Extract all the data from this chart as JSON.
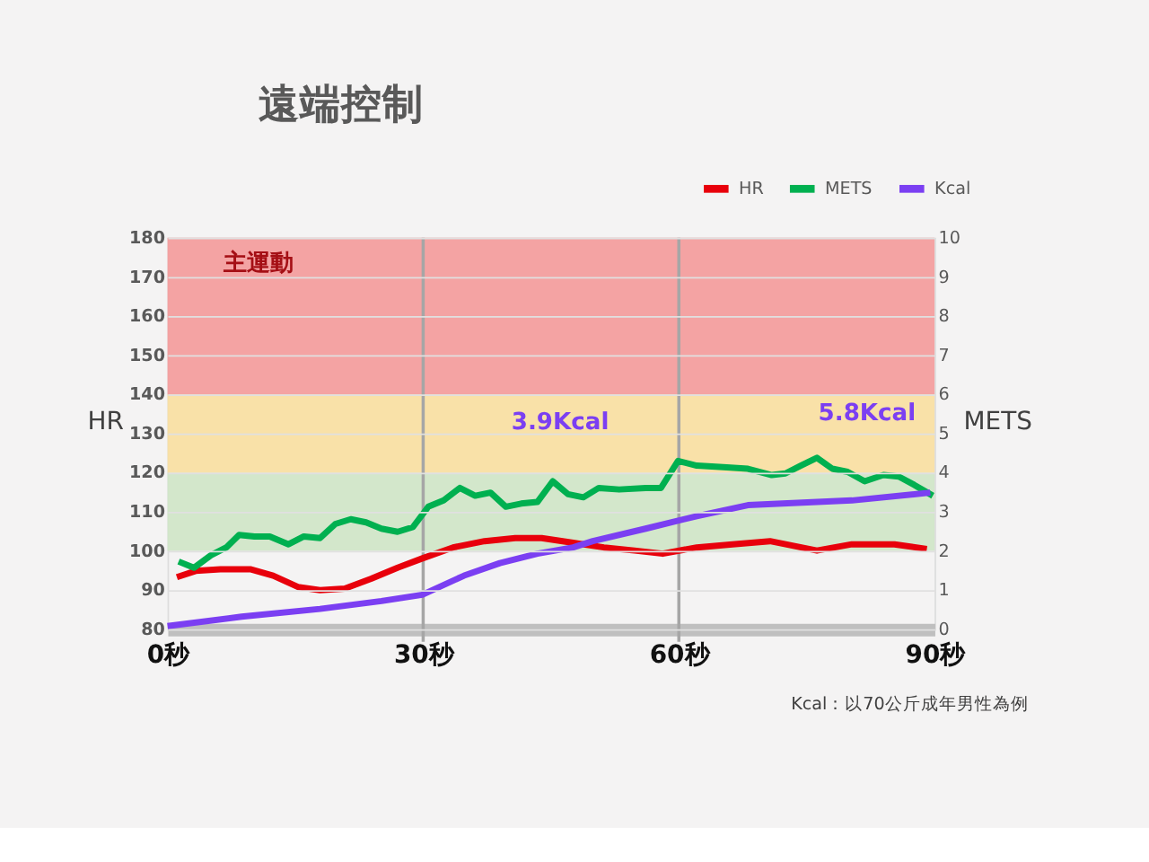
{
  "chart_data": {
    "type": "line",
    "title": "遠端控制",
    "xlabel": null,
    "ylabel": "HR",
    "y2label": "METS",
    "xlim": [
      0,
      90
    ],
    "xticks": [
      {
        "value": 0,
        "label": "0秒"
      },
      {
        "value": 30,
        "label": "30秒"
      },
      {
        "value": 60,
        "label": "60秒"
      },
      {
        "value": 90,
        "label": "90秒"
      }
    ],
    "ylim": [
      80,
      180
    ],
    "yticks": [
      80,
      90,
      100,
      110,
      120,
      130,
      140,
      150,
      160,
      170,
      180
    ],
    "y2lim": [
      0,
      10
    ],
    "y2ticks": [
      0,
      1,
      2,
      3,
      4,
      5,
      6,
      7,
      8,
      9,
      10
    ],
    "grid": "y",
    "legend": "top right",
    "line_style": "solid",
    "marker": "none",
    "series": [
      {
        "name": "HR",
        "color": "#e8000b",
        "x": [
          1.1,
          3.3,
          6.2,
          9.8,
          12.4,
          15.3,
          17.9,
          20.8,
          23.9,
          27.0,
          29.9,
          33.5,
          37.2,
          40.8,
          43.9,
          47.6,
          51.2,
          54.8,
          58.1,
          62.1,
          66.3,
          70.7,
          76.2,
          80.3,
          85.3,
          89.1
        ],
        "values": [
          93.3,
          94.9,
          95.3,
          95.3,
          93.7,
          90.8,
          90.0,
          90.4,
          92.9,
          95.7,
          98.1,
          100.9,
          102.5,
          103.3,
          103.3,
          102.1,
          100.9,
          100.1,
          99.3,
          100.9,
          101.7,
          102.5,
          100.1,
          101.7,
          101.7,
          100.5
        ]
      },
      {
        "name": "METS",
        "color": "#00b050",
        "axis": "y2",
        "x": [
          1.3,
          3.1,
          5.1,
          6.9,
          8.4,
          10.2,
          12.0,
          14.2,
          16.0,
          17.9,
          19.7,
          21.5,
          23.3,
          25.1,
          27.0,
          28.8,
          30.6,
          32.4,
          34.3,
          36.1,
          37.9,
          39.7,
          41.5,
          43.4,
          45.2,
          47.0,
          48.8,
          50.6,
          53.0,
          56.1,
          57.9,
          59.9,
          62.1,
          65.2,
          68.1,
          70.9,
          72.5,
          74.3,
          76.2,
          78.0,
          79.8,
          81.8,
          84.0,
          85.8,
          87.6,
          89.8
        ],
        "values": [
          1.73,
          1.57,
          1.89,
          2.09,
          2.41,
          2.37,
          2.37,
          2.17,
          2.37,
          2.33,
          2.69,
          2.81,
          2.73,
          2.57,
          2.49,
          2.61,
          3.13,
          3.29,
          3.61,
          3.41,
          3.49,
          3.13,
          3.21,
          3.25,
          3.78,
          3.45,
          3.37,
          3.61,
          3.57,
          3.61,
          3.61,
          4.3,
          4.18,
          4.14,
          4.1,
          3.94,
          3.98,
          4.18,
          4.38,
          4.1,
          4.02,
          3.78,
          3.94,
          3.9,
          3.69,
          3.41
        ]
      },
      {
        "name": "Kcal",
        "color": "#7b3ff2",
        "axis": "y2",
        "x": [
          0,
          8.7,
          17.9,
          25.1,
          29.9,
          34.8,
          39.0,
          43.4,
          47.6,
          49.9,
          56.1,
          62.1,
          68.1,
          80.3,
          89.5
        ],
        "values": [
          0.08,
          0.32,
          0.52,
          0.72,
          0.88,
          1.37,
          1.69,
          1.93,
          2.09,
          2.25,
          2.57,
          2.89,
          3.17,
          3.29,
          3.49
        ]
      }
    ],
    "bands": [
      {
        "axis": "y",
        "from": 100,
        "to": 120,
        "color": "#cfe5c6"
      },
      {
        "axis": "y",
        "from": 120,
        "to": 140,
        "color": "#f9dfa0"
      },
      {
        "axis": "y",
        "from": 140,
        "to": 180,
        "color": "#f49a9a"
      }
    ],
    "ref_lines": [
      {
        "axis": "x",
        "value": 30,
        "color": "#a6a6a6"
      },
      {
        "axis": "x",
        "value": 60,
        "color": "#a6a6a6"
      }
    ],
    "annotations": [
      "主運動",
      "3.9Kcal",
      "5.8Kcal",
      "Kcal：以70公斤成年男性為例"
    ]
  }
}
